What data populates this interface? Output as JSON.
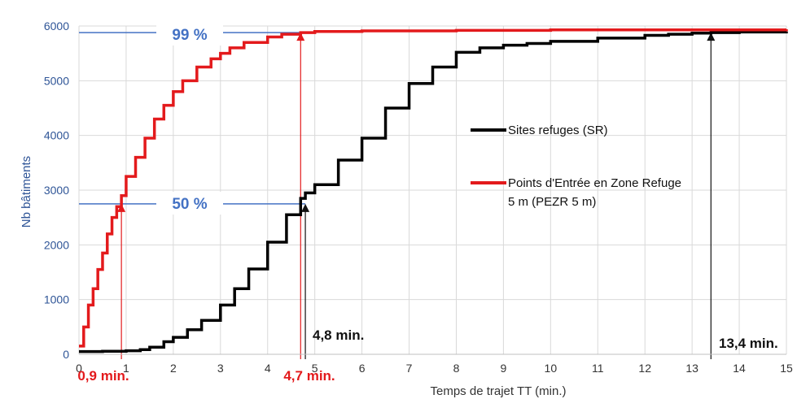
{
  "chart_data": {
    "type": "line",
    "xlabel": "Temps de trajet TT (min.)",
    "ylabel": "Nb bâtiments",
    "xlim": [
      0,
      15
    ],
    "ylim": [
      0,
      6000
    ],
    "x_ticks": [
      "0",
      "1",
      "2",
      "3",
      "4",
      "5",
      "6",
      "7",
      "8",
      "9",
      "10",
      "11",
      "12",
      "13",
      "14",
      "15"
    ],
    "y_ticks": [
      "0",
      "1000",
      "2000",
      "3000",
      "4000",
      "5000",
      "6000"
    ],
    "grid": true,
    "legend_placement": "right",
    "series": [
      {
        "name": "Sites refuges (SR)",
        "color": "#000000",
        "style": "step",
        "x": [
          0,
          0.5,
          1.0,
          1.3,
          1.5,
          1.8,
          2.0,
          2.3,
          2.6,
          3.0,
          3.3,
          3.6,
          4.0,
          4.4,
          4.7,
          4.8,
          5.0,
          5.5,
          6.0,
          6.5,
          7.0,
          7.5,
          8.0,
          8.5,
          9.0,
          9.5,
          10.0,
          11.0,
          12.0,
          12.5,
          13.0,
          13.4,
          14.0,
          15.0
        ],
        "y": [
          50,
          55,
          65,
          85,
          130,
          230,
          310,
          450,
          620,
          900,
          1200,
          1560,
          2050,
          2550,
          2850,
          2950,
          3100,
          3550,
          3950,
          4500,
          4950,
          5250,
          5520,
          5600,
          5650,
          5680,
          5720,
          5780,
          5830,
          5850,
          5870,
          5880,
          5890,
          5900
        ]
      },
      {
        "name": "Points d'Entrée en Zone Refuge 5 m (PEZR 5 m)",
        "color": "#e31a1c",
        "style": "step",
        "x": [
          0,
          0.1,
          0.2,
          0.3,
          0.4,
          0.5,
          0.6,
          0.7,
          0.8,
          0.9,
          1.0,
          1.2,
          1.4,
          1.6,
          1.8,
          2.0,
          2.2,
          2.5,
          2.8,
          3.0,
          3.2,
          3.5,
          4.0,
          4.3,
          4.7,
          5.0,
          6.0,
          8.0,
          10.0,
          15.0
        ],
        "y": [
          150,
          500,
          900,
          1200,
          1550,
          1850,
          2200,
          2500,
          2700,
          2900,
          3250,
          3600,
          3950,
          4300,
          4550,
          4800,
          5000,
          5250,
          5400,
          5500,
          5600,
          5700,
          5800,
          5850,
          5880,
          5900,
          5910,
          5920,
          5930,
          5940
        ]
      }
    ],
    "annotations": {
      "pct_99": "99 %",
      "pct_50": "50 %",
      "red_09": "0,9 min.",
      "red_47": "4,7 min.",
      "black_48": "4,8 min.",
      "black_134": "13,4 min."
    },
    "reference_lines": {
      "pct_99_y": 5880,
      "pct_50_y": 2750,
      "red_09_x": 0.9,
      "red_47_x": 4.7,
      "black_48_x": 4.8,
      "black_134_x": 13.4
    }
  },
  "legend": {
    "sr_label": "Sites refuges (SR)",
    "pezr_label_line1": "Points d'Entrée en Zone Refuge",
    "pezr_label_line2": "5 m (PEZR 5 m)"
  }
}
